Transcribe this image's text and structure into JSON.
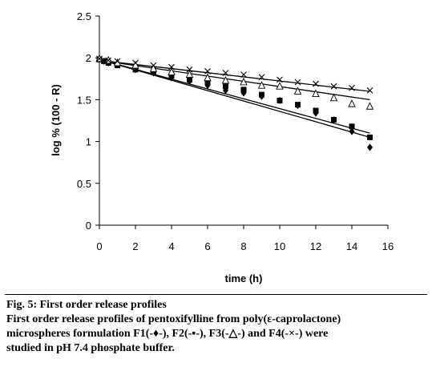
{
  "chart_data": {
    "type": "scatter",
    "xlabel": "time (h)",
    "ylabel": "log % (100 - R)",
    "xlim": [
      0,
      16
    ],
    "ylim": [
      0,
      2.5
    ],
    "xticks": [
      0,
      2,
      4,
      6,
      8,
      10,
      12,
      14,
      16
    ],
    "yticks": [
      0,
      0.5,
      1,
      1.5,
      2,
      2.5
    ],
    "grid": false,
    "series": [
      {
        "name": "F1",
        "marker": "diamond",
        "color": "#000000",
        "points": [
          [
            0,
            1.98
          ],
          [
            0.25,
            1.96
          ],
          [
            0.5,
            1.94
          ],
          [
            1,
            1.92
          ],
          [
            2,
            1.86
          ],
          [
            3,
            1.82
          ],
          [
            4,
            1.76
          ],
          [
            5,
            1.72
          ],
          [
            6,
            1.67
          ],
          [
            7,
            1.61
          ],
          [
            8,
            1.58
          ],
          [
            9,
            1.54
          ],
          [
            10,
            1.49
          ],
          [
            11,
            1.43
          ],
          [
            12,
            1.34
          ],
          [
            13,
            1.26
          ],
          [
            14,
            1.12
          ],
          [
            15,
            0.93
          ]
        ],
        "fit": [
          [
            0,
            1.98
          ],
          [
            15,
            1.05
          ]
        ]
      },
      {
        "name": "F2",
        "marker": "square",
        "color": "#000000",
        "points": [
          [
            0,
            1.98
          ],
          [
            0.25,
            1.96
          ],
          [
            0.5,
            1.94
          ],
          [
            1,
            1.91
          ],
          [
            2,
            1.86
          ],
          [
            3,
            1.83
          ],
          [
            4,
            1.79
          ],
          [
            5,
            1.74
          ],
          [
            6,
            1.71
          ],
          [
            7,
            1.66
          ],
          [
            8,
            1.62
          ],
          [
            9,
            1.56
          ],
          [
            10,
            1.49
          ],
          [
            11,
            1.44
          ],
          [
            12,
            1.37
          ],
          [
            13,
            1.26
          ],
          [
            14,
            1.18
          ],
          [
            15,
            1.05
          ]
        ],
        "fit": [
          [
            0,
            1.98
          ],
          [
            15,
            1.1
          ]
        ]
      },
      {
        "name": "F3",
        "marker": "triangle",
        "color": "#000000",
        "points": [
          [
            0,
            1.99
          ],
          [
            0.5,
            1.97
          ],
          [
            1,
            1.94
          ],
          [
            2,
            1.91
          ],
          [
            3,
            1.87
          ],
          [
            4,
            1.83
          ],
          [
            5,
            1.8
          ],
          [
            6,
            1.76
          ],
          [
            7,
            1.73
          ],
          [
            8,
            1.71
          ],
          [
            9,
            1.67
          ],
          [
            10,
            1.66
          ],
          [
            11,
            1.6
          ],
          [
            12,
            1.57
          ],
          [
            13,
            1.52
          ],
          [
            14,
            1.45
          ],
          [
            15,
            1.42
          ]
        ],
        "fit": [
          [
            0,
            1.97
          ],
          [
            15,
            1.5
          ]
        ]
      },
      {
        "name": "F4",
        "marker": "cross",
        "color": "#000000",
        "points": [
          [
            0,
            1.99
          ],
          [
            0.5,
            1.97
          ],
          [
            1,
            1.96
          ],
          [
            2,
            1.94
          ],
          [
            3,
            1.91
          ],
          [
            4,
            1.89
          ],
          [
            5,
            1.86
          ],
          [
            6,
            1.84
          ],
          [
            7,
            1.82
          ],
          [
            8,
            1.8
          ],
          [
            9,
            1.77
          ],
          [
            10,
            1.74
          ],
          [
            11,
            1.71
          ],
          [
            12,
            1.69
          ],
          [
            13,
            1.66
          ],
          [
            14,
            1.64
          ],
          [
            15,
            1.61
          ]
        ],
        "fit": [
          [
            0,
            1.97
          ],
          [
            15,
            1.6
          ]
        ]
      }
    ]
  },
  "caption": {
    "title": "Fig. 5: First order release profiles",
    "line1": "First order release profiles of pentoxifylline from poly(ε-caprolactone)",
    "line2": "microspheres formulation F1(-♦-), F2(-▪-), F3(-△-) and F4(-×-) were",
    "line3": "studied in pH 7.4 phosphate buffer."
  }
}
